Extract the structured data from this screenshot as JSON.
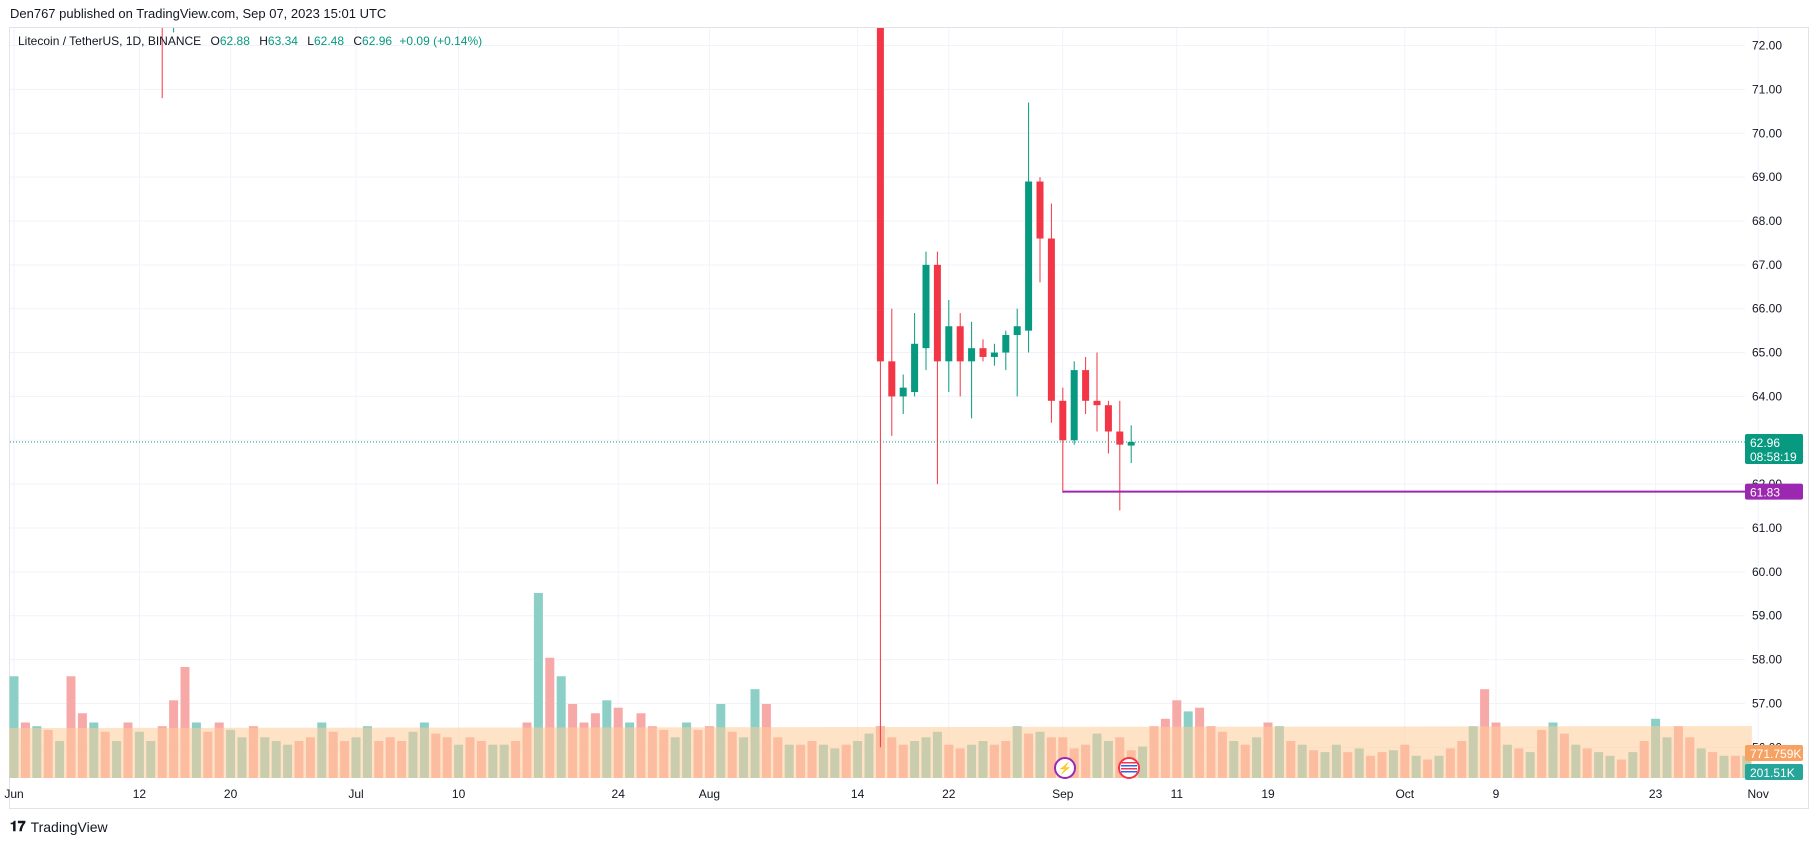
{
  "header": {
    "published_by": "Den767 published on TradingView.com, Sep 07, 2023 15:01 UTC"
  },
  "legend": {
    "symbol": "Litecoin / TetherUS, 1D, BINANCE",
    "o_label": "O",
    "o_value": "62.88",
    "h_label": "H",
    "h_value": "63.34",
    "l_label": "L",
    "l_value": "62.48",
    "c_label": "C",
    "c_value": "62.96",
    "change": "+0.09 (+0.14%)"
  },
  "footer": {
    "brand": "TradingView",
    "logo_icon": "tradingview-logo-icon"
  },
  "badges": {
    "last_price": "62.96",
    "countdown": "08:58:19",
    "level": "61.83",
    "volume_ma": "771.759K",
    "volume": "201.51K"
  },
  "colors": {
    "up": "#089981",
    "down": "#f23645",
    "level": "#9c27b0",
    "vol_up": "#8bcfc6",
    "vol_down": "#f7a9a7",
    "vol_ma_fill": "#ffcc99"
  },
  "chart_data": {
    "type": "candlestick",
    "y_ticks": [
      "72.00",
      "71.00",
      "70.00",
      "69.00",
      "68.00",
      "67.00",
      "66.00",
      "65.00",
      "64.00",
      "63.00",
      "62.00",
      "61.00",
      "60.00",
      "59.00",
      "58.00",
      "57.00",
      "56.00"
    ],
    "x_ticks": [
      "Jun",
      "12",
      "20",
      "Jul",
      "10",
      "24",
      "Aug",
      "14",
      "22",
      "Sep",
      "11",
      "19",
      "Oct",
      "9",
      "23",
      "Nov"
    ],
    "ylim": [
      55.3,
      72.4
    ],
    "level_line": 61.83,
    "last_price": 62.96,
    "candles": [
      {
        "date": "2023-08-16",
        "o": 72.6,
        "h": 72.6,
        "l": 56.0,
        "c": 64.8
      },
      {
        "date": "2023-08-17",
        "o": 64.8,
        "h": 66.0,
        "l": 63.1,
        "c": 64.0
      },
      {
        "date": "2023-08-18",
        "o": 64.0,
        "h": 64.5,
        "l": 63.6,
        "c": 64.2
      },
      {
        "date": "2023-08-19",
        "o": 64.1,
        "h": 65.9,
        "l": 64.0,
        "c": 65.2
      },
      {
        "date": "2023-08-20",
        "o": 65.1,
        "h": 67.3,
        "l": 64.6,
        "c": 67.0
      },
      {
        "date": "2023-08-21",
        "o": 67.0,
        "h": 67.3,
        "l": 62.0,
        "c": 64.8
      },
      {
        "date": "2023-08-22",
        "o": 64.8,
        "h": 66.2,
        "l": 64.1,
        "c": 65.6
      },
      {
        "date": "2023-08-23",
        "o": 65.6,
        "h": 65.9,
        "l": 64.0,
        "c": 64.8
      },
      {
        "date": "2023-08-24",
        "o": 64.8,
        "h": 65.7,
        "l": 63.5,
        "c": 65.1
      },
      {
        "date": "2023-08-25",
        "o": 65.1,
        "h": 65.3,
        "l": 64.8,
        "c": 64.9
      },
      {
        "date": "2023-08-26",
        "o": 64.9,
        "h": 65.2,
        "l": 64.7,
        "c": 65.0
      },
      {
        "date": "2023-08-27",
        "o": 65.0,
        "h": 65.5,
        "l": 64.6,
        "c": 65.4
      },
      {
        "date": "2023-08-28",
        "o": 65.4,
        "h": 66.0,
        "l": 64.0,
        "c": 65.6
      },
      {
        "date": "2023-08-29",
        "o": 65.5,
        "h": 70.7,
        "l": 65.0,
        "c": 68.9
      },
      {
        "date": "2023-08-30",
        "o": 68.9,
        "h": 69.0,
        "l": 66.6,
        "c": 67.6
      },
      {
        "date": "2023-08-31",
        "o": 67.6,
        "h": 68.4,
        "l": 63.4,
        "c": 63.9
      },
      {
        "date": "2023-09-01",
        "o": 63.9,
        "h": 64.2,
        "l": 61.8,
        "c": 63.0
      },
      {
        "date": "2023-09-02",
        "o": 63.0,
        "h": 64.8,
        "l": 62.9,
        "c": 64.6
      },
      {
        "date": "2023-09-03",
        "o": 64.6,
        "h": 64.9,
        "l": 63.6,
        "c": 63.9
      },
      {
        "date": "2023-09-04",
        "o": 63.9,
        "h": 65.0,
        "l": 63.2,
        "c": 63.8
      },
      {
        "date": "2023-09-05",
        "o": 63.8,
        "h": 63.9,
        "l": 62.7,
        "c": 63.2
      },
      {
        "date": "2023-09-06",
        "o": 63.2,
        "h": 63.9,
        "l": 61.4,
        "c": 62.9
      },
      {
        "date": "2023-09-07",
        "o": 62.88,
        "h": 63.34,
        "l": 62.48,
        "c": 62.96
      }
    ],
    "early_wicks": [
      {
        "date": "2023-06-14",
        "h": 72.6,
        "l": 70.8,
        "color": "down"
      },
      {
        "date": "2023-06-15",
        "h": 72.6,
        "l": 72.3,
        "color": "up"
      }
    ],
    "volumes": [
      [
        0.55,
        "u"
      ],
      [
        0.3,
        "d"
      ],
      [
        0.28,
        "u"
      ],
      [
        0.26,
        "d"
      ],
      [
        0.2,
        "u"
      ],
      [
        0.55,
        "d"
      ],
      [
        0.35,
        "d"
      ],
      [
        0.3,
        "u"
      ],
      [
        0.25,
        "d"
      ],
      [
        0.2,
        "u"
      ],
      [
        0.3,
        "d"
      ],
      [
        0.25,
        "u"
      ],
      [
        0.2,
        "u"
      ],
      [
        0.28,
        "d"
      ],
      [
        0.42,
        "d"
      ],
      [
        0.6,
        "d"
      ],
      [
        0.3,
        "u"
      ],
      [
        0.25,
        "d"
      ],
      [
        0.3,
        "d"
      ],
      [
        0.26,
        "u"
      ],
      [
        0.22,
        "u"
      ],
      [
        0.28,
        "d"
      ],
      [
        0.22,
        "u"
      ],
      [
        0.2,
        "u"
      ],
      [
        0.18,
        "u"
      ],
      [
        0.2,
        "d"
      ],
      [
        0.22,
        "d"
      ],
      [
        0.3,
        "u"
      ],
      [
        0.25,
        "d"
      ],
      [
        0.2,
        "d"
      ],
      [
        0.22,
        "u"
      ],
      [
        0.28,
        "u"
      ],
      [
        0.2,
        "d"
      ],
      [
        0.22,
        "d"
      ],
      [
        0.2,
        "d"
      ],
      [
        0.25,
        "u"
      ],
      [
        0.3,
        "u"
      ],
      [
        0.24,
        "d"
      ],
      [
        0.22,
        "d"
      ],
      [
        0.18,
        "u"
      ],
      [
        0.22,
        "d"
      ],
      [
        0.2,
        "d"
      ],
      [
        0.18,
        "u"
      ],
      [
        0.18,
        "u"
      ],
      [
        0.2,
        "d"
      ],
      [
        0.3,
        "d"
      ],
      [
        1.0,
        "u"
      ],
      [
        0.65,
        "d"
      ],
      [
        0.55,
        "u"
      ],
      [
        0.4,
        "d"
      ],
      [
        0.3,
        "d"
      ],
      [
        0.35,
        "d"
      ],
      [
        0.42,
        "u"
      ],
      [
        0.38,
        "d"
      ],
      [
        0.3,
        "u"
      ],
      [
        0.35,
        "d"
      ],
      [
        0.28,
        "d"
      ],
      [
        0.26,
        "d"
      ],
      [
        0.22,
        "u"
      ],
      [
        0.3,
        "u"
      ],
      [
        0.26,
        "d"
      ],
      [
        0.28,
        "d"
      ],
      [
        0.4,
        "u"
      ],
      [
        0.25,
        "d"
      ],
      [
        0.22,
        "u"
      ],
      [
        0.48,
        "u"
      ],
      [
        0.4,
        "d"
      ],
      [
        0.22,
        "d"
      ],
      [
        0.18,
        "u"
      ],
      [
        0.18,
        "d"
      ],
      [
        0.2,
        "d"
      ],
      [
        0.18,
        "u"
      ],
      [
        0.16,
        "u"
      ],
      [
        0.18,
        "d"
      ],
      [
        0.2,
        "u"
      ],
      [
        0.24,
        "u"
      ],
      [
        0.28,
        "d"
      ],
      [
        0.22,
        "d"
      ],
      [
        0.18,
        "d"
      ],
      [
        0.2,
        "u"
      ],
      [
        0.22,
        "u"
      ],
      [
        0.25,
        "u"
      ],
      [
        0.18,
        "d"
      ],
      [
        0.16,
        "d"
      ],
      [
        0.18,
        "u"
      ],
      [
        0.2,
        "u"
      ],
      [
        0.18,
        "d"
      ],
      [
        0.2,
        "d"
      ],
      [
        0.28,
        "u"
      ],
      [
        0.24,
        "d"
      ],
      [
        0.25,
        "u"
      ],
      [
        0.22,
        "d"
      ],
      [
        0.22,
        "d"
      ],
      [
        0.16,
        "d"
      ],
      [
        0.18,
        "d"
      ],
      [
        0.24,
        "u"
      ],
      [
        0.2,
        "u"
      ],
      [
        0.22,
        "d"
      ],
      [
        0.15,
        "d"
      ],
      [
        0.17,
        "u"
      ],
      [
        0.28,
        "d"
      ],
      [
        0.32,
        "d"
      ],
      [
        0.42,
        "d"
      ],
      [
        0.36,
        "u"
      ],
      [
        0.38,
        "d"
      ],
      [
        0.28,
        "d"
      ],
      [
        0.25,
        "d"
      ],
      [
        0.2,
        "u"
      ],
      [
        0.18,
        "d"
      ],
      [
        0.22,
        "u"
      ],
      [
        0.3,
        "d"
      ],
      [
        0.28,
        "u"
      ],
      [
        0.2,
        "d"
      ],
      [
        0.18,
        "u"
      ],
      [
        0.15,
        "d"
      ],
      [
        0.14,
        "u"
      ],
      [
        0.18,
        "u"
      ],
      [
        0.14,
        "d"
      ],
      [
        0.16,
        "u"
      ],
      [
        0.12,
        "d"
      ],
      [
        0.14,
        "d"
      ],
      [
        0.15,
        "u"
      ],
      [
        0.18,
        "d"
      ],
      [
        0.12,
        "u"
      ],
      [
        0.1,
        "d"
      ],
      [
        0.12,
        "u"
      ],
      [
        0.16,
        "d"
      ],
      [
        0.2,
        "d"
      ],
      [
        0.28,
        "u"
      ],
      [
        0.48,
        "d"
      ],
      [
        0.3,
        "d"
      ],
      [
        0.18,
        "u"
      ],
      [
        0.16,
        "d"
      ],
      [
        0.14,
        "u"
      ],
      [
        0.26,
        "d"
      ],
      [
        0.3,
        "u"
      ],
      [
        0.24,
        "d"
      ],
      [
        0.18,
        "u"
      ],
      [
        0.16,
        "d"
      ],
      [
        0.14,
        "u"
      ],
      [
        0.12,
        "u"
      ],
      [
        0.1,
        "d"
      ],
      [
        0.14,
        "u"
      ],
      [
        0.2,
        "d"
      ],
      [
        0.32,
        "u"
      ],
      [
        0.22,
        "u"
      ],
      [
        0.28,
        "d"
      ],
      [
        0.22,
        "d"
      ],
      [
        0.16,
        "u"
      ],
      [
        0.14,
        "d"
      ],
      [
        0.12,
        "u"
      ],
      [
        0.12,
        "d"
      ],
      [
        0.12,
        "u"
      ]
    ]
  }
}
